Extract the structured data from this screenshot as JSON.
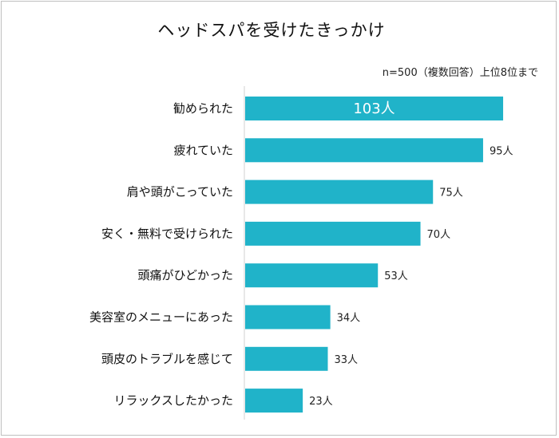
{
  "chart_data": {
    "type": "bar",
    "orientation": "horizontal",
    "title": "ヘッドスパを受けたきっかけ",
    "note": "n=500（複数回答）上位8位まで",
    "unit": "人",
    "categories": [
      "勧められた",
      "疲れていた",
      "肩や頭がこっていた",
      "安く・無料で受けられた",
      "頭痛がひどかった",
      "美容室のメニューにあった",
      "頭皮のトラブルを感じて",
      "リラックスしたかった"
    ],
    "values": [
      103,
      95,
      75,
      70,
      53,
      34,
      33,
      23
    ],
    "value_labels": [
      "103人",
      "95人",
      "75人",
      "70人",
      "53人",
      "34人",
      "33人",
      "23人"
    ],
    "xlim": [
      0,
      110
    ],
    "bar_color": "#20b3c9",
    "grid": false,
    "legend": "none"
  }
}
